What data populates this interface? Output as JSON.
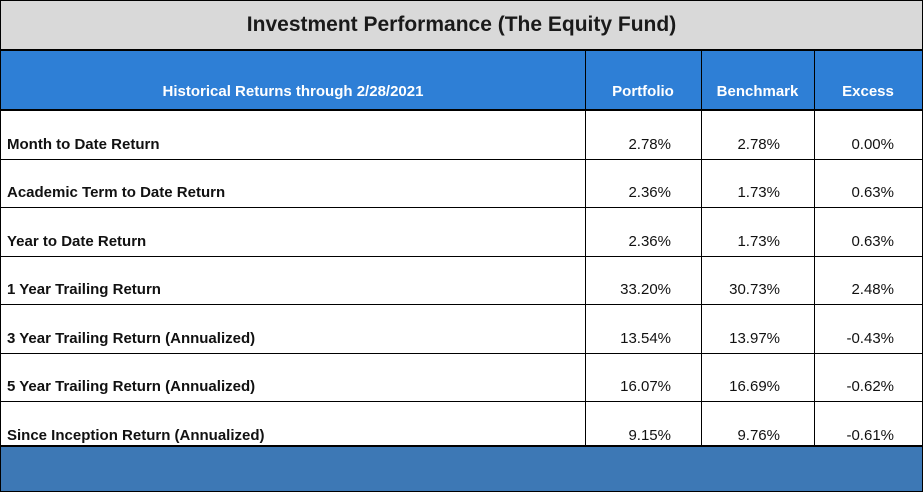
{
  "title": "Investment Performance (The Equity Fund)",
  "header": {
    "label": "Historical Returns through 2/28/2021",
    "portfolio": "Portfolio",
    "benchmark": "Benchmark",
    "excess": "Excess"
  },
  "rows": [
    {
      "label": "Month to Date Return",
      "portfolio": "2.78%",
      "benchmark": "2.78%",
      "excess": "0.00%"
    },
    {
      "label": "Academic Term to Date Return",
      "portfolio": "2.36%",
      "benchmark": "1.73%",
      "excess": "0.63%"
    },
    {
      "label": "Year to Date Return",
      "portfolio": "2.36%",
      "benchmark": "1.73%",
      "excess": "0.63%"
    },
    {
      "label": "1 Year Trailing Return",
      "portfolio": "33.20%",
      "benchmark": "30.73%",
      "excess": "2.48%"
    },
    {
      "label": "3 Year Trailing Return (Annualized)",
      "portfolio": "13.54%",
      "benchmark": "13.97%",
      "excess": "-0.43%"
    },
    {
      "label": "5 Year Trailing Return (Annualized)",
      "portfolio": "16.07%",
      "benchmark": "16.69%",
      "excess": "-0.62%"
    },
    {
      "label": "Since Inception Return (Annualized)",
      "portfolio": "9.15%",
      "benchmark": "9.76%",
      "excess": "-0.61%"
    }
  ],
  "colors": {
    "title_bg": "#d9d9d9",
    "header_bg": "#2e7fd6",
    "footer_bg": "#3d78b5"
  }
}
